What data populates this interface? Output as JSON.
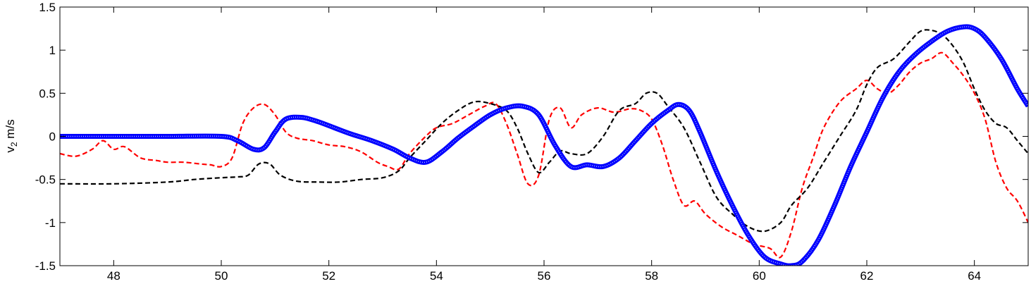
{
  "chart_data": {
    "type": "line",
    "title": "",
    "xlabel": "",
    "ylabel": "v",
    "ylabel_subscript": "2",
    "ylabel_unit": " m/s",
    "xlim": [
      47,
      65
    ],
    "ylim": [
      -1.5,
      1.5
    ],
    "xticks": [
      48,
      50,
      52,
      54,
      56,
      58,
      60,
      62,
      64
    ],
    "yticks": [
      -1.5,
      -1,
      -0.5,
      0,
      0.5,
      1,
      1.5
    ],
    "ytick_labels": [
      "-1.5",
      "-1",
      "-0.5",
      "0",
      "0.5",
      "1",
      "1.5"
    ],
    "grid": false,
    "series": [
      {
        "color": "#ff0000",
        "style": "dashed",
        "x": [
          47,
          47.3,
          47.6,
          47.8,
          48,
          48.2,
          48.5,
          48.8,
          49,
          49.3,
          49.6,
          49.8,
          50,
          50.2,
          50.4,
          50.6,
          50.8,
          51,
          51.2,
          51.4,
          51.7,
          52,
          52.3,
          52.6,
          52.9,
          53.1,
          53.3,
          53.5,
          53.8,
          54,
          54.3,
          54.6,
          54.9,
          55.1,
          55.3,
          55.5,
          55.7,
          55.9,
          56.1,
          56.3,
          56.5,
          56.7,
          57,
          57.3,
          57.6,
          57.8,
          58,
          58.2,
          58.4,
          58.6,
          58.8,
          59,
          59.3,
          59.6,
          59.9,
          60.2,
          60.4,
          60.6,
          60.8,
          61,
          61.2,
          61.5,
          61.8,
          62,
          62.2,
          62.4,
          62.6,
          62.8,
          63,
          63.2,
          63.4,
          63.6,
          63.8,
          64,
          64.2,
          64.4,
          64.6,
          64.8,
          65
        ],
        "y": [
          -0.2,
          -0.23,
          -0.15,
          -0.05,
          -0.15,
          -0.12,
          -0.25,
          -0.28,
          -0.3,
          -0.3,
          -0.32,
          -0.33,
          -0.35,
          -0.25,
          0.15,
          0.33,
          0.37,
          0.25,
          0.05,
          -0.02,
          -0.05,
          -0.1,
          -0.12,
          -0.18,
          -0.3,
          -0.35,
          -0.38,
          -0.2,
          0,
          0.1,
          0.15,
          0.25,
          0.35,
          0.38,
          0.15,
          -0.2,
          -0.55,
          -0.45,
          0.2,
          0.33,
          0.1,
          0.25,
          0.33,
          0.28,
          0.32,
          0.3,
          0.2,
          -0.1,
          -0.5,
          -0.8,
          -0.75,
          -0.9,
          -1.05,
          -1.15,
          -1.25,
          -1.3,
          -1.4,
          -1.1,
          -0.6,
          -0.25,
          0.1,
          0.4,
          0.55,
          0.65,
          0.55,
          0.5,
          0.6,
          0.75,
          0.85,
          0.9,
          0.97,
          0.85,
          0.7,
          0.5,
          0.2,
          -0.3,
          -0.6,
          -0.75,
          -1.0
        ]
      },
      {
        "color": "#000000",
        "style": "dashed",
        "x": [
          47,
          48,
          49,
          49.5,
          50,
          50.3,
          50.5,
          50.7,
          50.9,
          51.1,
          51.4,
          51.8,
          52.2,
          52.6,
          53,
          53.3,
          53.5,
          53.8,
          54.1,
          54.4,
          54.7,
          55,
          55.3,
          55.5,
          55.7,
          55.9,
          56.1,
          56.3,
          56.5,
          56.8,
          57.1,
          57.4,
          57.7,
          57.9,
          58.1,
          58.3,
          58.6,
          58.9,
          59.2,
          59.5,
          59.8,
          60.1,
          60.4,
          60.6,
          60.9,
          61.2,
          61.5,
          61.8,
          62,
          62.2,
          62.5,
          62.8,
          63,
          63.2,
          63.4,
          63.6,
          63.8,
          64,
          64.2,
          64.4,
          64.6,
          64.8,
          65
        ],
        "y": [
          -0.55,
          -0.55,
          -0.53,
          -0.5,
          -0.48,
          -0.47,
          -0.45,
          -0.32,
          -0.32,
          -0.45,
          -0.52,
          -0.53,
          -0.53,
          -0.5,
          -0.48,
          -0.4,
          -0.25,
          -0.05,
          0.15,
          0.3,
          0.4,
          0.38,
          0.3,
          0.1,
          -0.2,
          -0.42,
          -0.3,
          -0.17,
          -0.2,
          -0.2,
          0,
          0.3,
          0.38,
          0.5,
          0.5,
          0.35,
          0.1,
          -0.3,
          -0.7,
          -0.9,
          -1.05,
          -1.1,
          -1.0,
          -0.8,
          -0.6,
          -0.3,
          0,
          0.3,
          0.6,
          0.8,
          0.9,
          1.1,
          1.22,
          1.23,
          1.18,
          1.05,
          0.85,
          0.55,
          0.3,
          0.15,
          0.1,
          -0.05,
          -0.2
        ]
      },
      {
        "color": "#0000ff",
        "style": "solid-marker",
        "x": [
          47,
          48,
          49,
          50,
          50.3,
          50.6,
          50.8,
          51,
          51.2,
          51.5,
          51.8,
          52.1,
          52.4,
          52.8,
          53.2,
          53.5,
          53.8,
          54.1,
          54.4,
          54.7,
          55,
          55.3,
          55.6,
          55.9,
          56.2,
          56.5,
          56.8,
          57.1,
          57.4,
          57.7,
          58,
          58.3,
          58.5,
          58.7,
          58.9,
          59.2,
          59.5,
          59.8,
          60.1,
          60.4,
          60.6,
          60.8,
          61.1,
          61.4,
          61.7,
          62,
          62.3,
          62.6,
          62.9,
          63.2,
          63.5,
          63.8,
          64,
          64.2,
          64.5,
          64.8,
          65
        ],
        "y": [
          0,
          0,
          0,
          0,
          -0.05,
          -0.15,
          -0.13,
          0.05,
          0.2,
          0.22,
          0.17,
          0.1,
          0.03,
          -0.05,
          -0.15,
          -0.25,
          -0.3,
          -0.18,
          -0.02,
          0.12,
          0.25,
          0.33,
          0.35,
          0.25,
          -0.1,
          -0.35,
          -0.33,
          -0.35,
          -0.25,
          -0.05,
          0.15,
          0.3,
          0.37,
          0.3,
          0.05,
          -0.4,
          -0.8,
          -1.15,
          -1.4,
          -1.48,
          -1.5,
          -1.45,
          -1.2,
          -0.8,
          -0.35,
          0.05,
          0.45,
          0.75,
          0.95,
          1.1,
          1.22,
          1.27,
          1.25,
          1.15,
          0.9,
          0.55,
          0.35
        ]
      }
    ]
  }
}
